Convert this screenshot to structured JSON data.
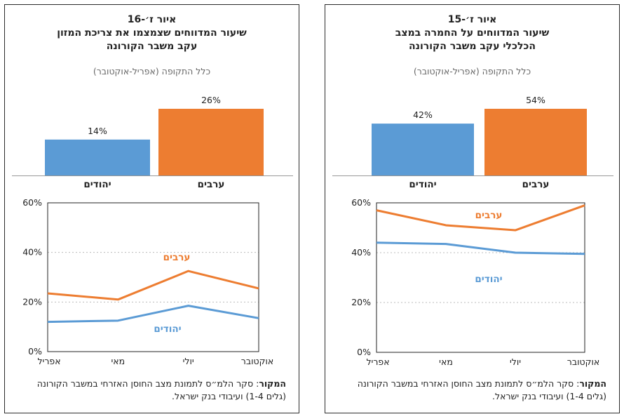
{
  "colors": {
    "jews": "#5b9bd5",
    "arabs": "#ed7d31"
  },
  "panels": [
    {
      "title_fig": "איור ז׳-15",
      "title_line1": "שיעור המדווחים על החמרה במצב",
      "title_line2": "הכלכלי עקב משבר הקורונה",
      "subtitle": "כלל התקופה (אפריל-אוקטובר)",
      "source_label": "המקור",
      "source_text": ": סקר הלמ״ס לתמונת מצב החוסן האזרחי במשבר הקורונה (גלים 1-4) ועיבודי בנק ישראל.",
      "chart_data": [
        {
          "type": "bar",
          "categories": [
            "יהודים",
            "ערבים"
          ],
          "values": [
            42,
            54
          ],
          "value_labels": [
            "42%",
            "54%"
          ],
          "colors": [
            "#5b9bd5",
            "#ed7d31"
          ]
        },
        {
          "type": "line",
          "x": [
            "אפריל",
            "מאי",
            "יולי",
            "אוקטובר"
          ],
          "ylim": [
            0,
            60
          ],
          "yticks": [
            "0%",
            "20%",
            "40%",
            "60%"
          ],
          "series": [
            {
              "name": "ערבים",
              "values": [
                57,
                51,
                49,
                59
              ],
              "color": "#ed7d31"
            },
            {
              "name": "יהודים",
              "values": [
                44,
                43.5,
                40,
                39.5
              ],
              "color": "#5b9bd5"
            }
          ]
        }
      ]
    },
    {
      "title_fig": "איור ז׳-16",
      "title_line1": "שיעור המדווחים שצמצמו את צריכת המזון",
      "title_line2": "עקב משבר הקורונה",
      "subtitle": "כלל התקופה (אפריל-אוקטובר)",
      "source_label": "המקור",
      "source_text": ": סקר הלמ״ס לתמונת מצב החוסן האזרחי במשבר הקורונה (גלים 1-4) ועיבודי בנק ישראל.",
      "chart_data": [
        {
          "type": "bar",
          "categories": [
            "יהודים",
            "ערבים"
          ],
          "values": [
            14,
            26
          ],
          "value_labels": [
            "14%",
            "26%"
          ],
          "colors": [
            "#5b9bd5",
            "#ed7d31"
          ]
        },
        {
          "type": "line",
          "x": [
            "אפריל",
            "מאי",
            "יולי",
            "אוקטובר"
          ],
          "ylim": [
            0,
            60
          ],
          "yticks": [
            "0%",
            "20%",
            "40%",
            "60%"
          ],
          "series": [
            {
              "name": "ערבים",
              "values": [
                23.5,
                21,
                32.5,
                25.5
              ],
              "color": "#ed7d31"
            },
            {
              "name": "יהודים",
              "values": [
                12,
                12.5,
                18.5,
                13.5
              ],
              "color": "#5b9bd5"
            }
          ]
        }
      ]
    }
  ]
}
